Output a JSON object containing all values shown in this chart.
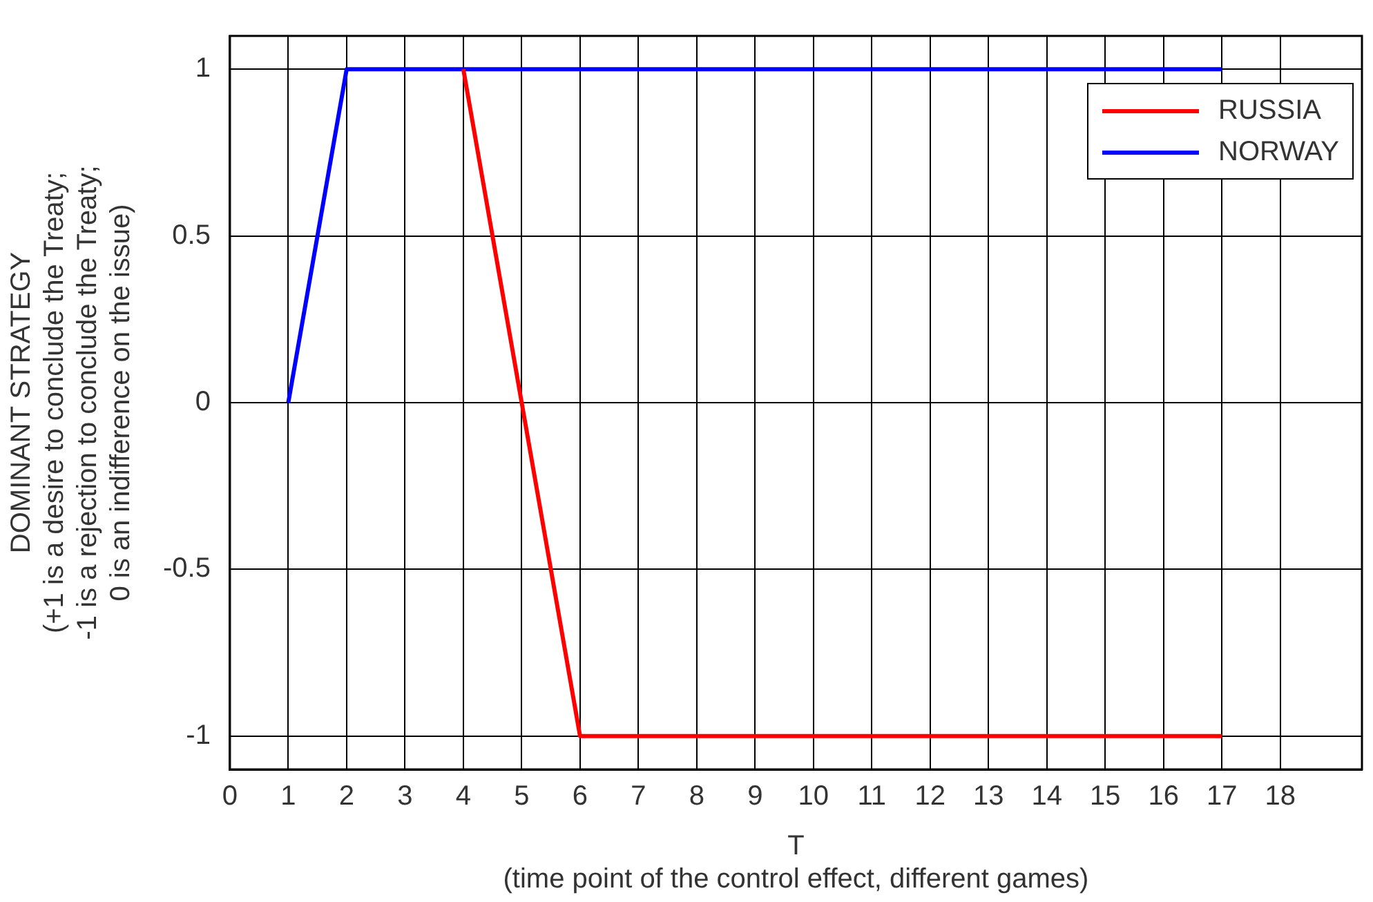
{
  "chart_data": {
    "type": "line",
    "xlabel": "T\n(time point of the control effect, different games)",
    "ylabel": "DOMINANT STRATEGY\n(+1 is a desire to conclude the Treaty;\n-1 is a rejection to conclude the Treaty;\n0 is an indifference on the issue)",
    "series": [
      {
        "name": "RUSSIA",
        "color": "#ff0000",
        "x": [
          4,
          6,
          17
        ],
        "values": [
          1,
          -1,
          -1
        ]
      },
      {
        "name": "NORWAY",
        "color": "#0000ff",
        "x": [
          1,
          2,
          17
        ],
        "values": [
          0,
          1,
          1
        ]
      }
    ],
    "xlim": [
      0,
      19.4
    ],
    "xticks": [
      0,
      1,
      2,
      3,
      4,
      5,
      6,
      7,
      8,
      9,
      10,
      11,
      12,
      13,
      14,
      15,
      16,
      17,
      18
    ],
    "ylim": [
      -1.1,
      1.1
    ],
    "yticks": [
      -1,
      -0.5,
      0,
      0.5,
      1
    ],
    "grid": true,
    "legend": "top right",
    "marker": "none",
    "line_style": "solid"
  }
}
